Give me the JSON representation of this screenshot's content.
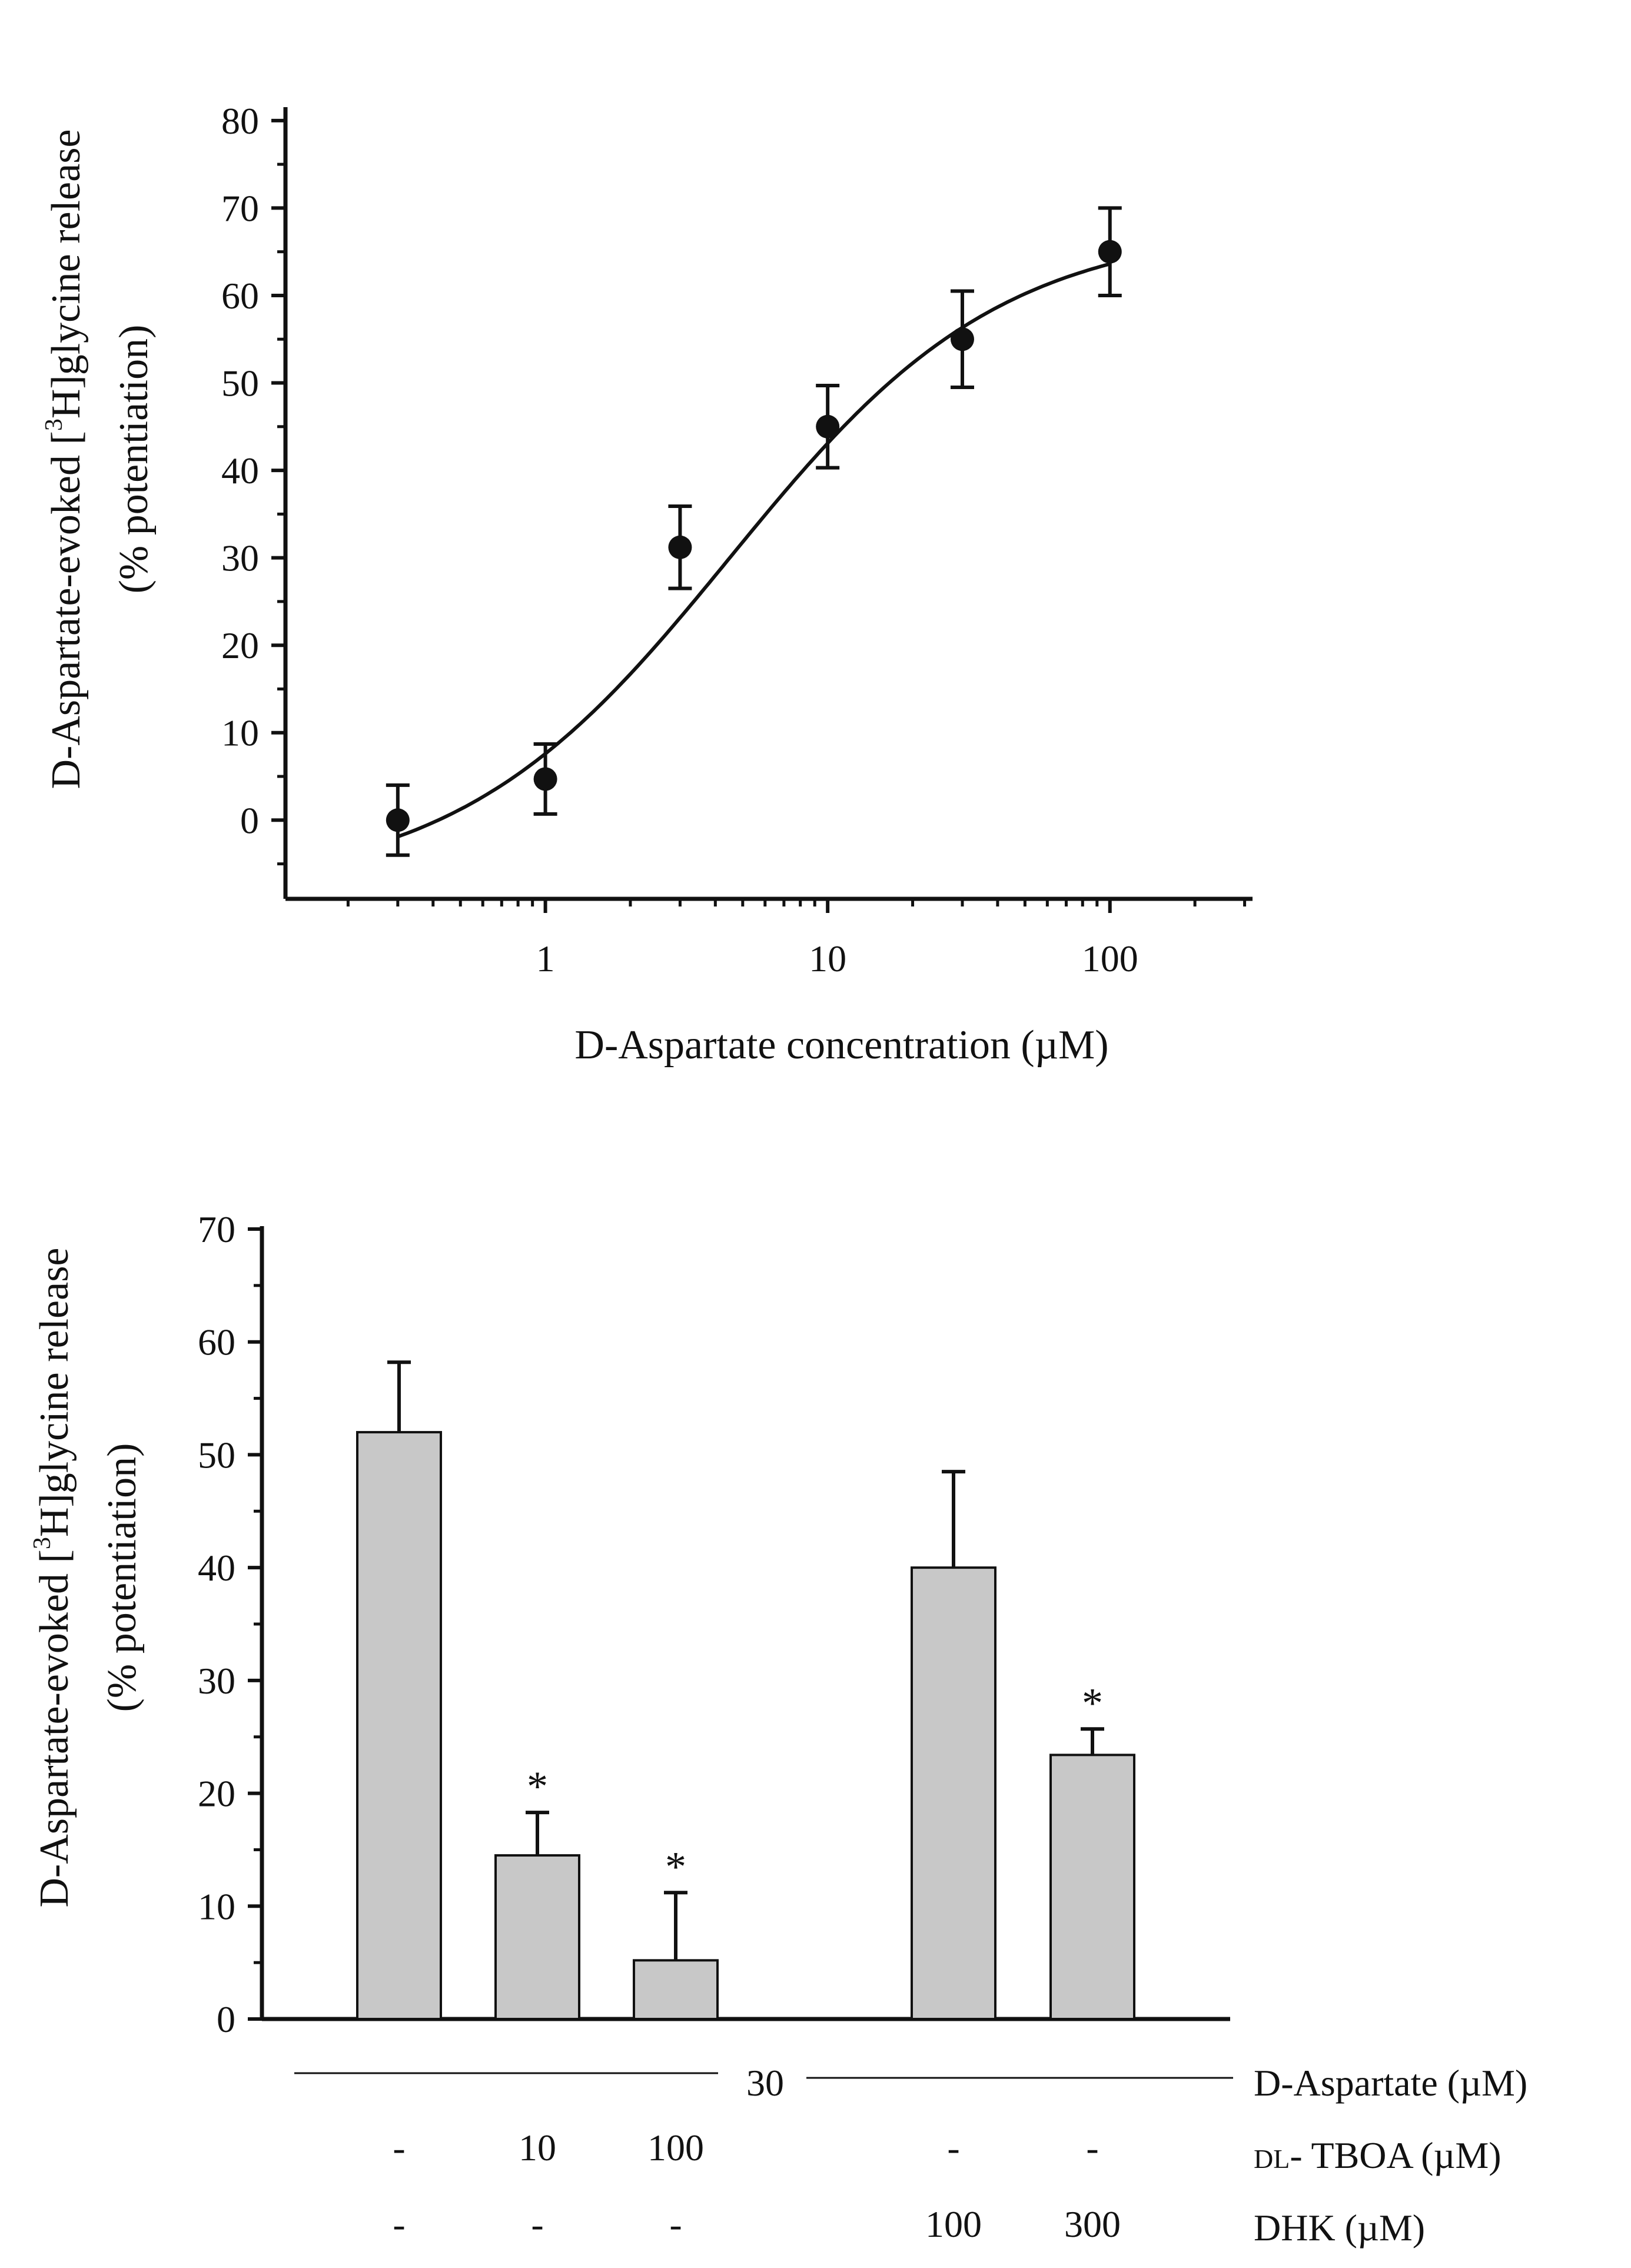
{
  "chart_data": [
    {
      "type": "scatter",
      "xscale": "log",
      "xlabel": "D-Aspartate concentration (µM)",
      "ylabel_line1_pre": "D-Aspartate-evoked [",
      "ylabel_sup": "3",
      "ylabel_line1_post": "H]glycine release",
      "ylabel_line2": "(% potentiation)",
      "x_ticks": [
        "1",
        "10",
        "100"
      ],
      "y_ticks": [
        "0",
        "10",
        "20",
        "30",
        "40",
        "50",
        "60",
        "70",
        "80"
      ],
      "xlim": [
        0.12,
        320
      ],
      "ylim": [
        -9,
        81
      ],
      "points": [
        {
          "x": 0.3,
          "y": 0,
          "err": 4
        },
        {
          "x": 1,
          "y": 4.7,
          "err": 4
        },
        {
          "x": 3,
          "y": 31.2,
          "err": 4.7
        },
        {
          "x": 10,
          "y": 45,
          "err": 4.7
        },
        {
          "x": 30,
          "y": 55,
          "err": 5.5
        },
        {
          "x": 100,
          "y": 65,
          "err": 5
        }
      ],
      "fit": {
        "type": "sigmoid",
        "bottom": -8,
        "top": 68,
        "ec50": 4.5,
        "hill": 0.9,
        "x_range": [
          0.3,
          100
        ]
      }
    },
    {
      "type": "bar",
      "ylabel_line1_pre": "D-Aspartate-evoked [",
      "ylabel_sup": "3",
      "ylabel_line1_post": "H]glycine release",
      "ylabel_line2": "(% potentiation)",
      "y_ticks": [
        "0",
        "10",
        "20",
        "30",
        "40",
        "50",
        "60",
        "70"
      ],
      "ylim": [
        0,
        70
      ],
      "bars": [
        {
          "value": 52,
          "err": 6.2,
          "star": ""
        },
        {
          "value": 14.5,
          "err": 3.8,
          "star": "*"
        },
        {
          "value": 5.2,
          "err": 6,
          "star": "*"
        },
        {
          "value": 40,
          "err": 8.5,
          "star": ""
        },
        {
          "value": 23.4,
          "err": 2.3,
          "star": "*"
        }
      ],
      "conditions": {
        "daspartate_value": "30",
        "daspartate_label": "D-Aspartate (µM)",
        "tboa_values": [
          "-",
          "10",
          "100",
          "-",
          "-"
        ],
        "tboa_label_prefix": "DL",
        "tboa_label_rest": "- TBOA (µM)",
        "dhk_values": [
          "-",
          "-",
          "-",
          "100",
          "300"
        ],
        "dhk_label": "DHK (µM)"
      }
    }
  ]
}
